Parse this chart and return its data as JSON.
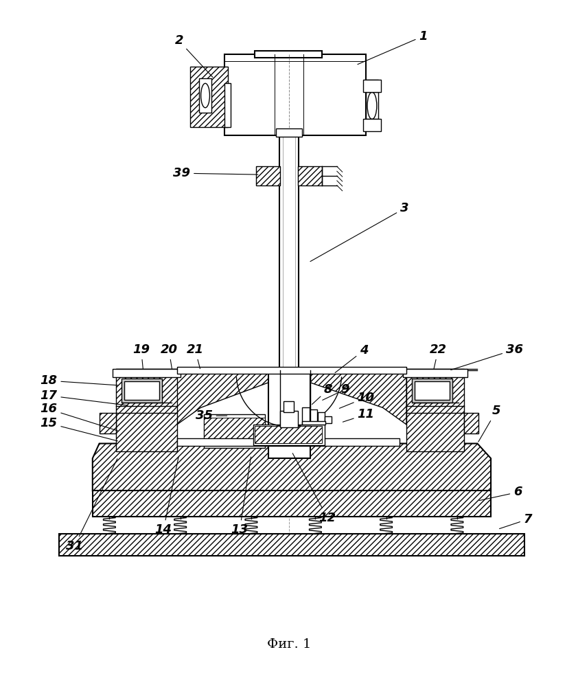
{
  "title": "Фиг. 1",
  "title_fontsize": 14,
  "bg": "#ffffff",
  "lc": "#000000",
  "labels": {
    "1": {
      "lpos": [
        620,
        45
      ],
      "tpos": [
        520,
        88
      ]
    },
    "2": {
      "lpos": [
        258,
        52
      ],
      "tpos": [
        310,
        108
      ]
    },
    "3": {
      "lpos": [
        592,
        300
      ],
      "tpos": [
        450,
        380
      ]
    },
    "4": {
      "lpos": [
        532,
        510
      ],
      "tpos": [
        487,
        545
      ]
    },
    "5": {
      "lpos": [
        728,
        600
      ],
      "tpos": [
        700,
        648
      ]
    },
    "6": {
      "lpos": [
        760,
        720
      ],
      "tpos": [
        700,
        733
      ]
    },
    "7": {
      "lpos": [
        775,
        760
      ],
      "tpos": [
        730,
        775
      ]
    },
    "8": {
      "lpos": [
        479,
        568
      ],
      "tpos": [
        453,
        592
      ]
    },
    "9": {
      "lpos": [
        504,
        568
      ],
      "tpos": [
        468,
        585
      ]
    },
    "10": {
      "lpos": [
        535,
        580
      ],
      "tpos": [
        493,
        597
      ]
    },
    "11": {
      "lpos": [
        535,
        605
      ],
      "tpos": [
        498,
        617
      ]
    },
    "12": {
      "lpos": [
        478,
        758
      ],
      "tpos": [
        425,
        660
      ]
    },
    "13": {
      "lpos": [
        348,
        776
      ],
      "tpos": [
        365,
        665
      ]
    },
    "14": {
      "lpos": [
        235,
        776
      ],
      "tpos": [
        258,
        665
      ]
    },
    "15": {
      "lpos": [
        65,
        618
      ],
      "tpos": [
        170,
        645
      ]
    },
    "16": {
      "lpos": [
        65,
        597
      ],
      "tpos": [
        170,
        630
      ]
    },
    "17": {
      "lpos": [
        65,
        577
      ],
      "tpos": [
        185,
        592
      ]
    },
    "18": {
      "lpos": [
        65,
        555
      ],
      "tpos": [
        170,
        562
      ]
    },
    "19": {
      "lpos": [
        202,
        509
      ],
      "tpos": [
        205,
        540
      ]
    },
    "20": {
      "lpos": [
        243,
        509
      ],
      "tpos": [
        248,
        540
      ]
    },
    "21": {
      "lpos": [
        282,
        509
      ],
      "tpos": [
        290,
        540
      ]
    },
    "22": {
      "lpos": [
        642,
        509
      ],
      "tpos": [
        635,
        540
      ]
    },
    "31": {
      "lpos": [
        103,
        800
      ],
      "tpos": [
        168,
        668
      ]
    },
    "35": {
      "lpos": [
        295,
        607
      ],
      "tpos": [
        332,
        607
      ]
    },
    "36": {
      "lpos": [
        755,
        509
      ],
      "tpos": [
        658,
        540
      ]
    },
    "39": {
      "lpos": [
        262,
        248
      ],
      "tpos": [
        378,
        250
      ]
    }
  }
}
